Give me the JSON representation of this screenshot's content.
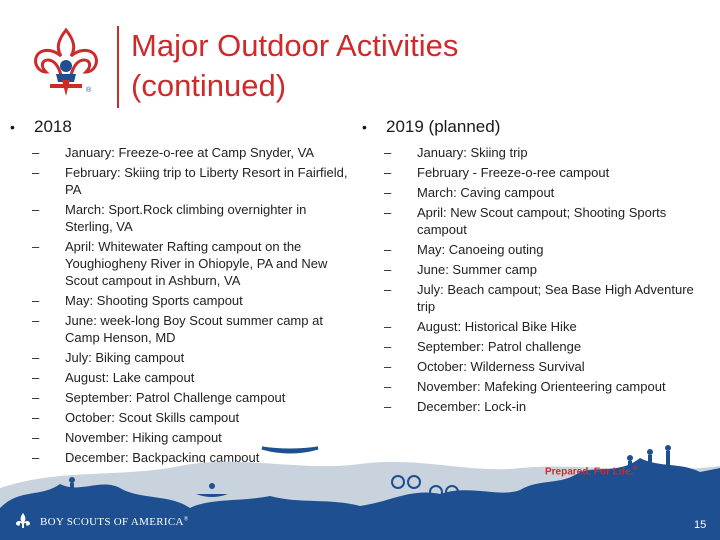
{
  "title": {
    "line1": "Major Outdoor Activities",
    "line2": "(continued)"
  },
  "logo": {
    "icon": "fleur-de-lis-eagle-icon",
    "mark": "®"
  },
  "left": {
    "heading": "2018",
    "items": [
      "January:  Freeze-o-ree at Camp Snyder, VA",
      "February:  Skiing trip to Liberty Resort in Fairfield, PA",
      "March:  Sport.Rock climbing overnighter in Sterling, VA",
      "April:  Whitewater Rafting campout on the Youghiogheny River in Ohiopyle, PA and New Scout campout in Ashburn, VA",
      "May:  Shooting Sports campout",
      "June:  week-long Boy Scout summer camp at Camp Henson, MD",
      "July:  Biking campout",
      "August:  Lake campout",
      "September:  Patrol Challenge campout",
      "October:  Scout Skills campout",
      "November:  Hiking campout",
      "December:  Backpacking campout"
    ]
  },
  "right": {
    "heading": "2019 (planned)",
    "items": [
      "January:  Skiing trip",
      "February - Freeze-o-ree campout",
      "March:  Caving campout",
      "April: New Scout campout; Shooting Sports campout",
      "May:  Canoeing outing",
      "June:  Summer camp",
      "July:  Beach campout; Sea Base High Adventure trip",
      "August:  Historical Bike Hike",
      "September:  Patrol challenge",
      "October:  Wilderness Survival",
      "November:  Mafeking Orienteering campout",
      "December:  Lock-in"
    ]
  },
  "footer": {
    "tagline": "Prepared. For Life.",
    "tagline_mark": "®",
    "org": "BOY SCOUTS OF AMERICA",
    "org_mark": "®",
    "page_number": "15",
    "colors": {
      "mountains": "#1d4f91",
      "hills": "#c9d3de",
      "accent": "#cf2a2a"
    }
  }
}
